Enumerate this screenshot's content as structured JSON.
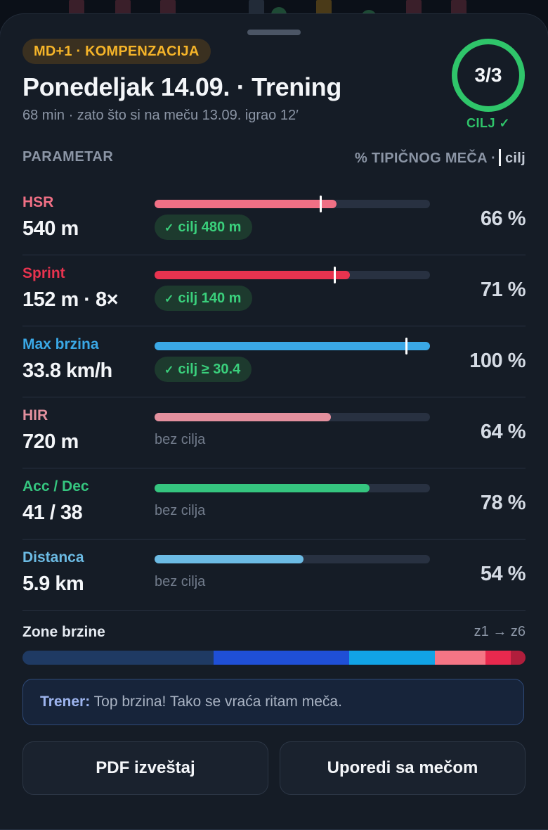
{
  "header": {
    "badge": "MD+1 · KOMPENZACIJA",
    "title": "Ponedeljak 14.09. · Trening",
    "subtitle": "68 min · zato što si na meču 13.09. igrao 12′",
    "goals_progress": "3/3",
    "goals_met": 3,
    "goals_total": 3,
    "goal_label": "CILJ ✓"
  },
  "columns": {
    "left": "PARAMETAR",
    "right_prefix": "% TIPIČNOG MEČA ·",
    "right_suffix": "cilj"
  },
  "metrics": [
    {
      "name": "HSR",
      "value": "540 m",
      "percent_label": "66 %",
      "percent": 66,
      "goal_fraction": 0.6,
      "goal": "cilj 480 m",
      "color": "#f07085"
    },
    {
      "name": "Sprint",
      "value": "152 m · 8×",
      "percent_label": "71 %",
      "percent": 71,
      "goal_fraction": 0.65,
      "goal": "cilj 140 m",
      "color": "#e8334f"
    },
    {
      "name": "Max brzina",
      "value": "33.8 km/h",
      "percent_label": "100 %",
      "percent": 100,
      "goal_fraction": 0.91,
      "goal": "cilj ≥ 30.4",
      "color": "#3aa8e6"
    },
    {
      "name": "HIR",
      "value": "720 m",
      "percent_label": "64 %",
      "percent": 64,
      "goal_fraction": null,
      "goal": "bez cilja",
      "color": "#e3909e"
    },
    {
      "name": "Acc / Dec",
      "value": "41 / 38",
      "percent_label": "78 %",
      "percent": 78,
      "goal_fraction": null,
      "goal": "bez cilja",
      "color": "#35c57f"
    },
    {
      "name": "Distanca",
      "value": "5.9 km",
      "percent_label": "54 %",
      "percent": 54,
      "goal_fraction": null,
      "goal": "bez cilja",
      "color": "#6cbbe4"
    }
  ],
  "zones": {
    "title": "Zone brzine",
    "range": "z1 → z6",
    "shares": [
      38,
      27,
      17,
      10,
      5,
      3
    ],
    "colors": [
      "#1f3a63",
      "#1f4fd6",
      "#11a3e6",
      "#f57585",
      "#e8294e",
      "#b01e3c"
    ]
  },
  "coach": {
    "label": "Trener:",
    "text": "Top brzina! Tako se vraća ritam meča."
  },
  "buttons": {
    "pdf": "PDF izveštaj",
    "compare": "Uporedi sa mečom"
  }
}
